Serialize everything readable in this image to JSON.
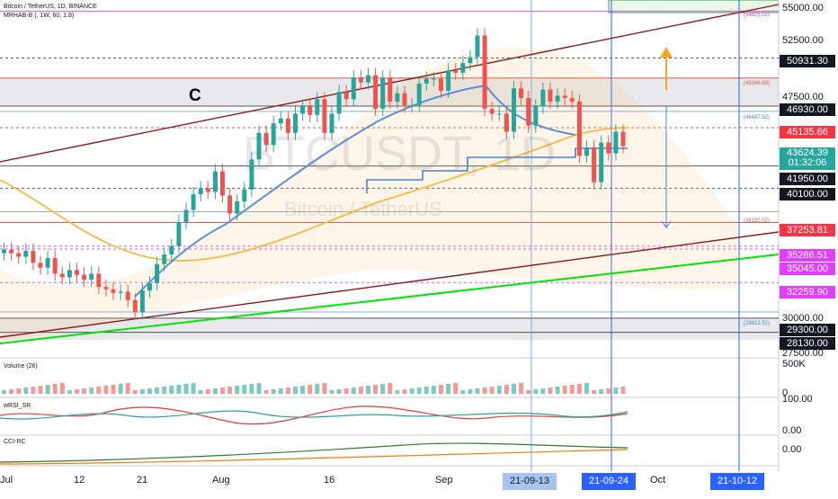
{
  "header": {
    "symbol_line": "Bitcoin / TetherUS, 1D, BINANCE",
    "indicator_line": "MRHAB-B (, 1W, 60, 1.8)"
  },
  "watermark": {
    "ticker": "BTCUSDT, 1D",
    "name": "Bitcoin / TetherUS"
  },
  "annotation_letter": "C",
  "colors": {
    "up_candle": "#26a69a",
    "down_candle": "#ef5350",
    "trendline": "#8b1a1a",
    "support_line": "#00e600",
    "slow_ma": "#f5b942",
    "fast_band": "#5b8fd6",
    "target_arrow": "#f5a623"
  },
  "price_axis": {
    "ticks": [
      "55000.00",
      "52500.00",
      "47500.00",
      "45000.00",
      "30000.00",
      "27500.00"
    ],
    "tags": [
      {
        "label": "50931.30",
        "kind": "black"
      },
      {
        "label": "46930.00",
        "kind": "black"
      },
      {
        "label": "45135.66",
        "kind": "red"
      },
      {
        "label": "43624.39",
        "sub": "01:32:06",
        "kind": "teal"
      },
      {
        "label": "41950.00",
        "kind": "black"
      },
      {
        "label": "40100.00",
        "kind": "black"
      },
      {
        "label": "37253.81",
        "kind": "red"
      },
      {
        "label": "35286.51",
        "kind": "magenta"
      },
      {
        "label": "35045.00",
        "kind": "magenta"
      },
      {
        "label": "32259.90",
        "kind": "magenta"
      },
      {
        "label": "29300.00",
        "kind": "black"
      },
      {
        "label": "28130.00",
        "kind": "black"
      }
    ],
    "notes": [
      {
        "label": "(54825.02)",
        "kind": "magenta"
      },
      {
        "label": "(49266.69)",
        "kind": "red"
      },
      {
        "label": "(46487.52)",
        "kind": "blue"
      },
      {
        "label": "(38150.02)",
        "kind": "gray"
      },
      {
        "label": "(29812.52)",
        "kind": "blue"
      }
    ]
  },
  "panes": {
    "volume": {
      "label": "Volume (26)",
      "ticks": [
        "500K",
        "0"
      ]
    },
    "rsi": {
      "label": "wRSI_SR",
      "ticks": [
        "100.00",
        "0.00"
      ]
    },
    "cci": {
      "label": "CCI-RC",
      "ticks": [
        "0.00"
      ]
    }
  },
  "time_axis": {
    "labels": [
      "Jul",
      "12",
      "21",
      "Aug",
      "16",
      "Sep",
      "Oct"
    ],
    "badges": [
      "21-09-13",
      "21-09-24",
      "21-10-12"
    ]
  },
  "chart_data": {
    "type": "candlestick",
    "title": "Bitcoin / TetherUS, 1D, BINANCE",
    "y_range": [
      26500,
      56000
    ],
    "x_start_date": "2021-06-29",
    "candles_close": [
      35000,
      34700,
      34400,
      34900,
      33900,
      33500,
      34300,
      33000,
      32700,
      33300,
      32900,
      32500,
      33000,
      31900,
      31700,
      31400,
      31500,
      30800,
      29800,
      31600,
      32200,
      33800,
      34600,
      35300,
      37300,
      38300,
      39600,
      40100,
      39800,
      41500,
      39500,
      38000,
      39000,
      40000,
      42500,
      44700,
      43700,
      45500,
      45900,
      44700,
      46300,
      46900,
      46200,
      47500,
      44700,
      46300,
      48100,
      47500,
      49300,
      48900,
      49500,
      46700,
      49300,
      47300,
      48000,
      47000,
      47000,
      48800,
      49200,
      49200,
      48200,
      49900,
      49700,
      50500,
      51000,
      52800,
      46700,
      46300,
      46300,
      44800,
      48400,
      47600,
      45300,
      46900,
      48300,
      47300,
      47800,
      47600,
      47300,
      42800,
      43500,
      40600,
      43900,
      43000,
      44800,
      43600
    ],
    "levels": [
      55000,
      54825.02,
      50931.3,
      49266.69,
      46930.0,
      46487.52,
      45135.66,
      43624.39,
      41950.0,
      40100.0,
      38150.02,
      37253.81,
      35286.51,
      35045.0,
      32259.9,
      29812.52,
      29300.0,
      28130.0
    ],
    "last_price": 43624.39,
    "countdown": "01:32:06"
  }
}
